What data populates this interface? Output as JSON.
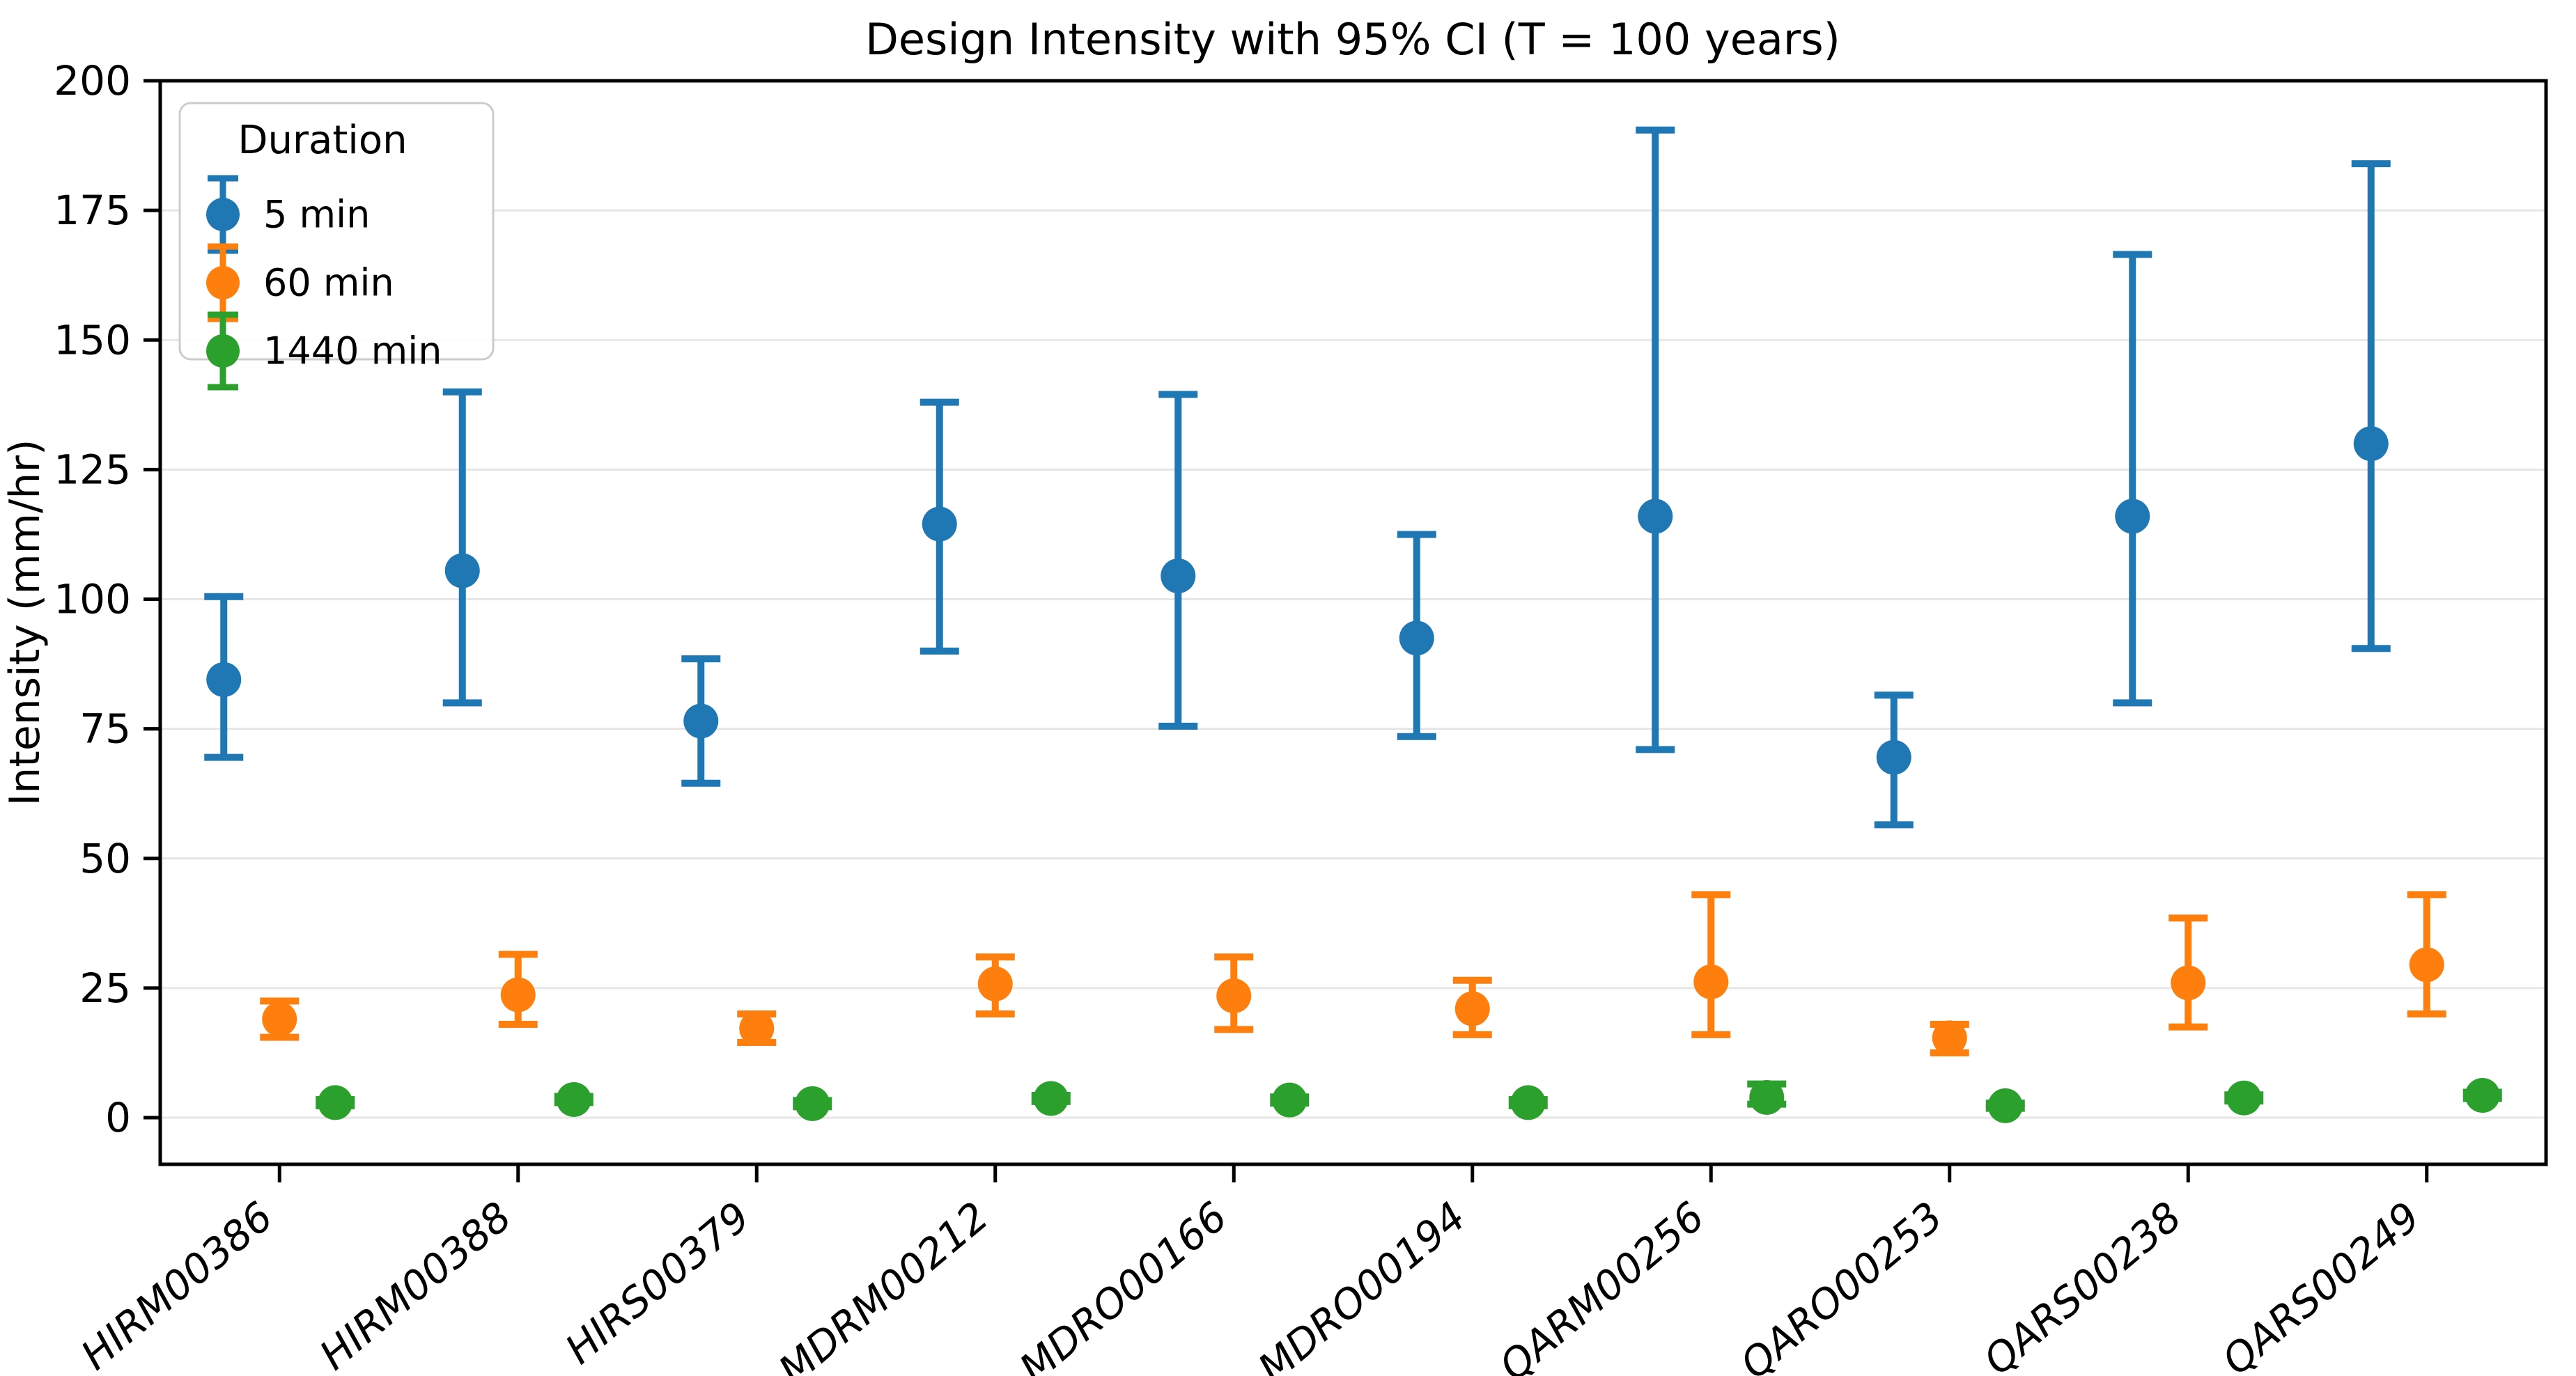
{
  "figure": {
    "background_color": "#ffffff",
    "grid_color": "#e6e6e6",
    "spine_color": "#000000",
    "legend_border_color": "#cccccc"
  },
  "chart_data": {
    "type": "errorbar",
    "title": "Design Intensity with 95% CI (T = 100 years)",
    "xlabel": "",
    "ylabel": "Intensity (mm/hr)",
    "ylim": [
      -9,
      200
    ],
    "y_ticks": [
      0,
      25,
      50,
      75,
      100,
      125,
      150,
      175,
      200
    ],
    "grid": "horizontal",
    "legend": {
      "title": "Duration",
      "position": "upper-left"
    },
    "categories": [
      "HIRM00386",
      "HIRM00388",
      "HIRS00379",
      "MDRM00212",
      "MDRO00166",
      "MDRO00194",
      "QARM00256",
      "QARO00253",
      "QARS00238",
      "QARS00249"
    ],
    "series": [
      {
        "name": "5 min",
        "color": "#1f77b4",
        "values": [
          84.5,
          105.5,
          76.5,
          114.5,
          104.5,
          92.5,
          116.0,
          69.5,
          116.0,
          130.0
        ],
        "ci_low": [
          69.5,
          80.0,
          64.5,
          90.0,
          75.5,
          73.5,
          71.0,
          56.5,
          80.0,
          90.5
        ],
        "ci_high": [
          100.5,
          140.0,
          88.5,
          138.0,
          139.5,
          112.5,
          190.5,
          81.5,
          166.5,
          184.0
        ]
      },
      {
        "name": "60 min",
        "color": "#ff7f0e",
        "values": [
          19.0,
          23.7,
          17.2,
          25.8,
          23.5,
          21.0,
          26.2,
          15.4,
          26.0,
          29.5
        ],
        "ci_low": [
          15.5,
          18.0,
          14.5,
          20.0,
          17.0,
          16.0,
          16.0,
          12.5,
          17.5,
          20.0
        ],
        "ci_high": [
          22.5,
          31.5,
          20.0,
          31.0,
          31.0,
          26.5,
          43.0,
          18.0,
          38.5,
          43.0
        ]
      },
      {
        "name": "1440 min",
        "color": "#2ca02c",
        "values": [
          2.9,
          3.5,
          2.7,
          3.7,
          3.4,
          2.9,
          3.9,
          2.3,
          3.8,
          4.3
        ],
        "ci_low": [
          2.3,
          2.9,
          2.1,
          3.1,
          2.8,
          2.3,
          2.6,
          1.8,
          3.2,
          3.7
        ],
        "ci_high": [
          3.5,
          4.1,
          3.3,
          4.3,
          4.0,
          3.5,
          6.5,
          2.8,
          4.4,
          4.9
        ]
      }
    ]
  }
}
